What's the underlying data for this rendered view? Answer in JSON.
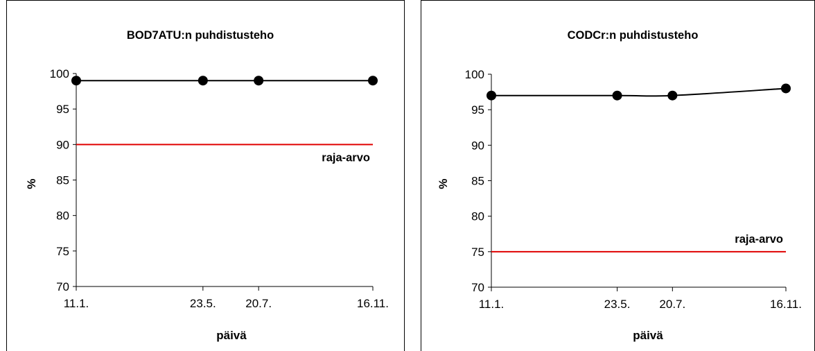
{
  "chart_data": [
    {
      "type": "line",
      "title": "BOD7ATU:n puhdistusteho",
      "xlabel": "päivä",
      "ylabel": "%",
      "categories": [
        "11.1.",
        "23.5.",
        "20.7.",
        "16.11."
      ],
      "x": [
        11,
        143,
        201,
        320
      ],
      "series": [
        {
          "values": [
            99,
            99,
            99,
            99
          ],
          "color": "#000000",
          "marker": "circle"
        }
      ],
      "reference_line": {
        "value": 90,
        "label": "raja-arvo",
        "color": "#e00000"
      },
      "ylim": [
        70,
        100
      ],
      "yticks": [
        70,
        75,
        80,
        85,
        90,
        95,
        100
      ],
      "xlim": [
        11,
        320
      ],
      "grid": false,
      "legend": "none"
    },
    {
      "type": "line",
      "title": "CODCr:n puhdistusteho",
      "xlabel": "päivä",
      "ylabel": "%",
      "categories": [
        "11.1.",
        "23.5.",
        "20.7.",
        "16.11."
      ],
      "x": [
        11,
        143,
        201,
        320
      ],
      "series": [
        {
          "values": [
            97,
            97,
            97,
            98
          ],
          "color": "#000000",
          "marker": "circle"
        }
      ],
      "reference_line": {
        "value": 75,
        "label": "raja-arvo",
        "color": "#e00000"
      },
      "ylim": [
        70,
        100
      ],
      "yticks": [
        70,
        75,
        80,
        85,
        90,
        95,
        100
      ],
      "xlim": [
        11,
        320
      ],
      "grid": false,
      "legend": "none"
    }
  ]
}
